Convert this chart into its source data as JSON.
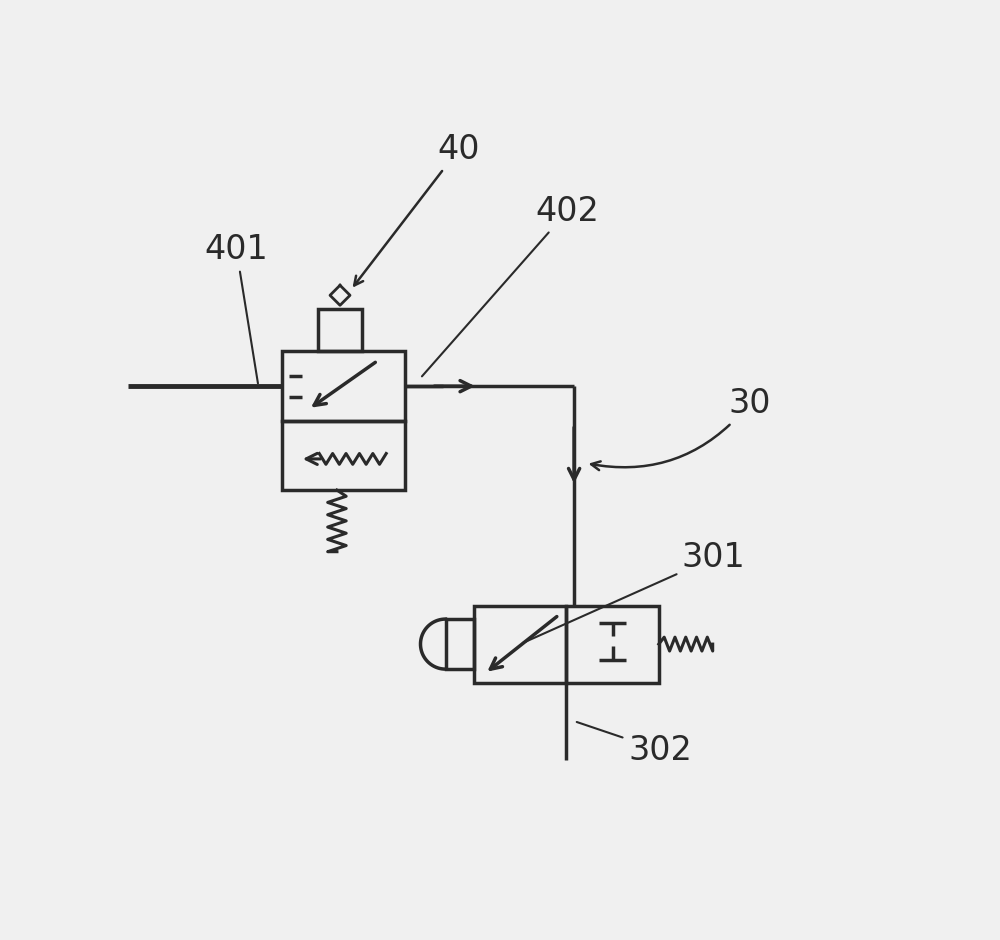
{
  "bg_color": "#f0f0f0",
  "line_color": "#2a2a2a",
  "label_color": "#2a2a2a",
  "label_fontsize": 24,
  "lw": 2.5
}
